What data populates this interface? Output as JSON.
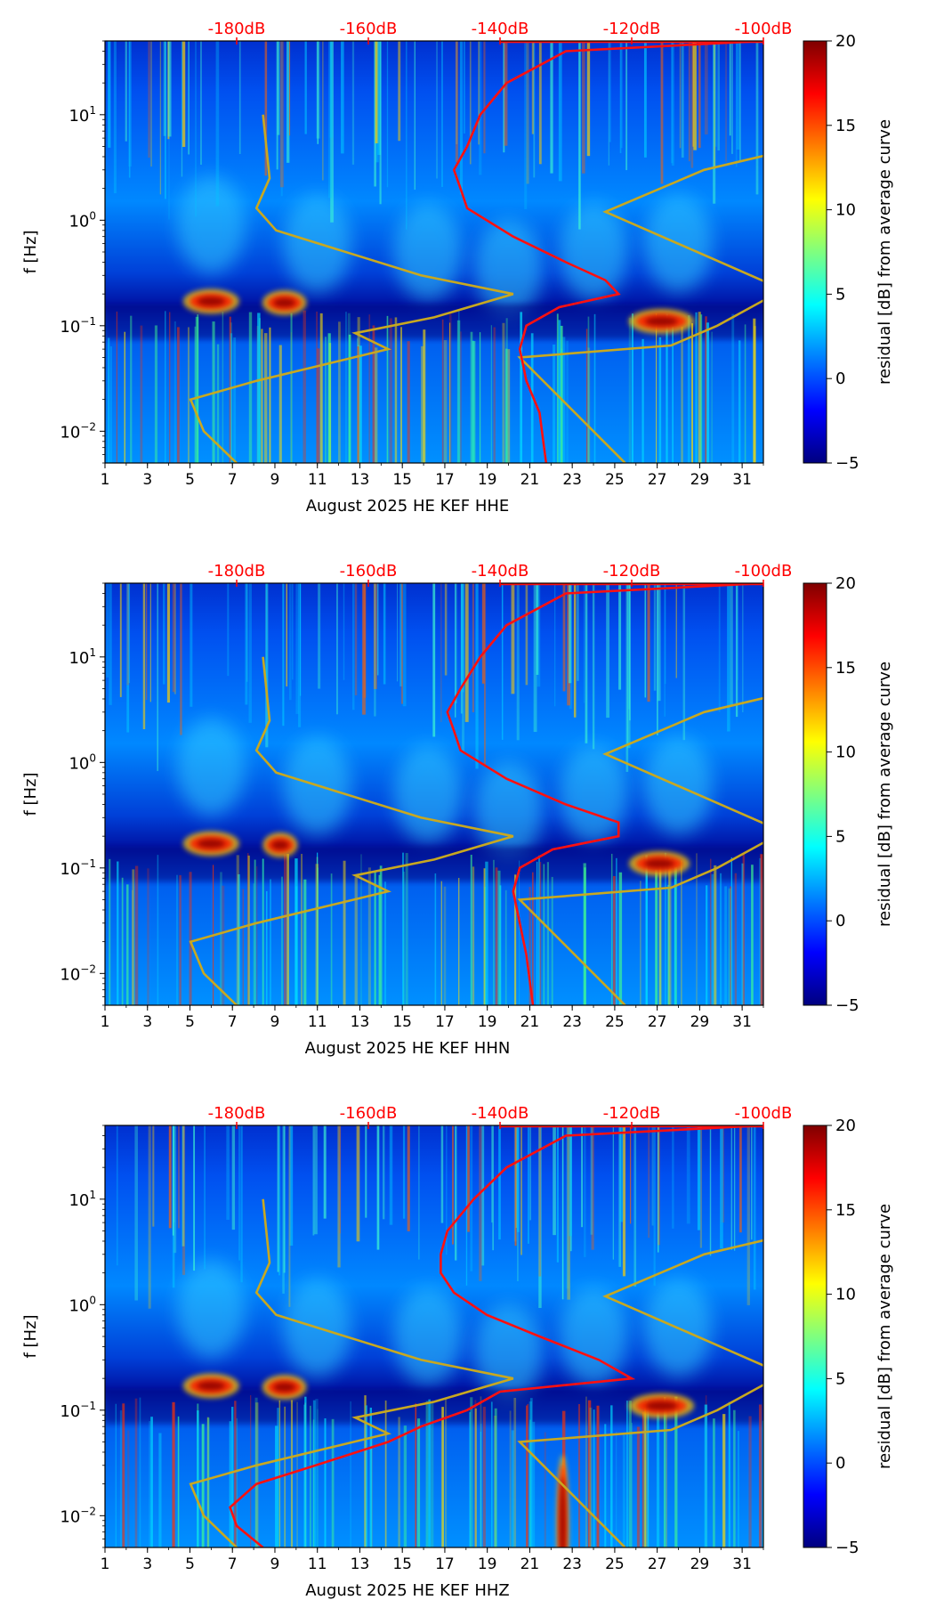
{
  "colormap": [
    "#00007f",
    "#0000ff",
    "#007fff",
    "#00ffff",
    "#7fff7f",
    "#ffff00",
    "#ff7f00",
    "#ff0000",
    "#7f0000"
  ],
  "chart_data": [
    {
      "type": "heatmap",
      "xlabel": "August 2025 HE KEF  HHE",
      "ylabel": "f [Hz]",
      "x_ticks": [
        "1",
        "3",
        "5",
        "7",
        "9",
        "11",
        "13",
        "15",
        "17",
        "19",
        "21",
        "23",
        "25",
        "27",
        "29",
        "31"
      ],
      "x_range_days": [
        1,
        32
      ],
      "y_ticks": [
        {
          "base": "10",
          "exp": "1",
          "value": 10
        },
        {
          "base": "10",
          "exp": "0",
          "value": 1
        },
        {
          "base": "10",
          "exp": "−1",
          "value": 0.1
        },
        {
          "base": "10",
          "exp": "−2",
          "value": 0.01
        }
      ],
      "y_range_hz": [
        0.005,
        50
      ],
      "top_axis_ticks": [
        "-180dB",
        "-160dB",
        "-140dB",
        "-120dB",
        "-100dB"
      ],
      "top_axis_range_db": [
        -200,
        -100
      ],
      "colorbar": {
        "label": "residual [dB] from average curve",
        "min": -5,
        "max": 20,
        "ticks": [
          "20",
          "15",
          "10",
          "5",
          "0",
          "−5"
        ],
        "tick_values": [
          20,
          15,
          10,
          5,
          0,
          -5
        ]
      },
      "hot_patches": [
        {
          "day_range": [
            4.8,
            7.2
          ],
          "freq_hz": 0.17,
          "level_db": 19
        },
        {
          "day_range": [
            8.5,
            10.4
          ],
          "freq_hz": 0.165,
          "level_db": 16
        },
        {
          "day_range": [
            25.8,
            28.6
          ],
          "freq_hz": 0.11,
          "level_db": 19
        }
      ],
      "nlnm_curve_db_vs_hz": [
        [
          0.005,
          -180
        ],
        [
          0.01,
          -185
        ],
        [
          0.02,
          -187
        ],
        [
          0.03,
          -177
        ],
        [
          0.06,
          -157
        ],
        [
          0.085,
          -162
        ],
        [
          0.12,
          -150
        ],
        [
          0.2,
          -138
        ],
        [
          0.3,
          -152
        ],
        [
          0.8,
          -174
        ],
        [
          1.3,
          -177
        ],
        [
          2.5,
          -175
        ],
        [
          10,
          -176
        ]
      ],
      "nhnm_curve_db_vs_hz": [
        [
          0.005,
          -121
        ],
        [
          0.05,
          -137
        ],
        [
          0.065,
          -114
        ],
        [
          0.1,
          -107
        ],
        [
          0.22,
          -97
        ],
        [
          1.2,
          -124
        ],
        [
          3,
          -109
        ],
        [
          4.5,
          -97
        ],
        [
          10,
          -94
        ]
      ],
      "psd_curve_db_vs_hz": [
        [
          0.005,
          -133
        ],
        [
          0.015,
          -134
        ],
        [
          0.03,
          -136
        ],
        [
          0.06,
          -137
        ],
        [
          0.1,
          -136
        ],
        [
          0.15,
          -131
        ],
        [
          0.2,
          -122
        ],
        [
          0.27,
          -124
        ],
        [
          0.4,
          -130
        ],
        [
          0.7,
          -138
        ],
        [
          1.3,
          -145
        ],
        [
          2,
          -146
        ],
        [
          3,
          -147
        ],
        [
          5,
          -145
        ],
        [
          10,
          -143
        ],
        [
          20,
          -139
        ],
        [
          40,
          -130
        ],
        [
          50,
          -100
        ]
      ]
    },
    {
      "type": "heatmap",
      "xlabel": "August 2025 HE KEF  HHN",
      "ylabel": "f [Hz]",
      "x_ticks": [
        "1",
        "3",
        "5",
        "7",
        "9",
        "11",
        "13",
        "15",
        "17",
        "19",
        "21",
        "23",
        "25",
        "27",
        "29",
        "31"
      ],
      "x_range_days": [
        1,
        32
      ],
      "y_ticks": [
        {
          "base": "10",
          "exp": "1",
          "value": 10
        },
        {
          "base": "10",
          "exp": "0",
          "value": 1
        },
        {
          "base": "10",
          "exp": "−1",
          "value": 0.1
        },
        {
          "base": "10",
          "exp": "−2",
          "value": 0.01
        }
      ],
      "y_range_hz": [
        0.005,
        50
      ],
      "top_axis_ticks": [
        "-180dB",
        "-160dB",
        "-140dB",
        "-120dB",
        "-100dB"
      ],
      "top_axis_range_db": [
        -200,
        -100
      ],
      "colorbar": {
        "label": "residual [dB] from average curve",
        "min": -5,
        "max": 20,
        "ticks": [
          "20",
          "15",
          "10",
          "5",
          "0",
          "−5"
        ],
        "tick_values": [
          20,
          15,
          10,
          5,
          0,
          -5
        ]
      },
      "hot_patches": [
        {
          "day_range": [
            4.8,
            7.2
          ],
          "freq_hz": 0.17,
          "level_db": 16
        },
        {
          "day_range": [
            8.5,
            10.0
          ],
          "freq_hz": 0.165,
          "level_db": 14
        },
        {
          "day_range": [
            25.8,
            28.4
          ],
          "freq_hz": 0.11,
          "level_db": 19
        }
      ],
      "nlnm_curve_db_vs_hz": [
        [
          0.005,
          -180
        ],
        [
          0.01,
          -185
        ],
        [
          0.02,
          -187
        ],
        [
          0.03,
          -177
        ],
        [
          0.06,
          -157
        ],
        [
          0.085,
          -162
        ],
        [
          0.12,
          -150
        ],
        [
          0.2,
          -138
        ],
        [
          0.3,
          -152
        ],
        [
          0.8,
          -174
        ],
        [
          1.3,
          -177
        ],
        [
          2.5,
          -175
        ],
        [
          10,
          -176
        ]
      ],
      "nhnm_curve_db_vs_hz": [
        [
          0.005,
          -121
        ],
        [
          0.05,
          -137
        ],
        [
          0.065,
          -114
        ],
        [
          0.1,
          -107
        ],
        [
          0.22,
          -97
        ],
        [
          1.2,
          -124
        ],
        [
          3,
          -109
        ],
        [
          4.5,
          -97
        ],
        [
          10,
          -94
        ]
      ],
      "psd_curve_db_vs_hz": [
        [
          0.005,
          -135
        ],
        [
          0.015,
          -136
        ],
        [
          0.03,
          -137
        ],
        [
          0.06,
          -138
        ],
        [
          0.1,
          -137
        ],
        [
          0.15,
          -132
        ],
        [
          0.2,
          -122
        ],
        [
          0.27,
          -122
        ],
        [
          0.4,
          -130
        ],
        [
          0.7,
          -139
        ],
        [
          1.3,
          -146
        ],
        [
          2,
          -147
        ],
        [
          3,
          -148
        ],
        [
          5,
          -146
        ],
        [
          10,
          -143
        ],
        [
          20,
          -139
        ],
        [
          40,
          -130
        ],
        [
          50,
          -100
        ]
      ]
    },
    {
      "type": "heatmap",
      "xlabel": "August 2025 HE KEF  HHZ",
      "ylabel": "f [Hz]",
      "x_ticks": [
        "1",
        "3",
        "5",
        "7",
        "9",
        "11",
        "13",
        "15",
        "17",
        "19",
        "21",
        "23",
        "25",
        "27",
        "29",
        "31"
      ],
      "x_range_days": [
        1,
        32
      ],
      "y_ticks": [
        {
          "base": "10",
          "exp": "1",
          "value": 10
        },
        {
          "base": "10",
          "exp": "0",
          "value": 1
        },
        {
          "base": "10",
          "exp": "−1",
          "value": 0.1
        },
        {
          "base": "10",
          "exp": "−2",
          "value": 0.01
        }
      ],
      "y_range_hz": [
        0.005,
        50
      ],
      "top_axis_ticks": [
        "-180dB",
        "-160dB",
        "-140dB",
        "-120dB",
        "-100dB"
      ],
      "top_axis_range_db": [
        -200,
        -100
      ],
      "colorbar": {
        "label": "residual [dB] from average curve",
        "min": -5,
        "max": 20,
        "ticks": [
          "20",
          "15",
          "10",
          "5",
          "0",
          "−5"
        ],
        "tick_values": [
          20,
          15,
          10,
          5,
          0,
          -5
        ]
      },
      "hot_patches": [
        {
          "day_range": [
            4.8,
            7.2
          ],
          "freq_hz": 0.17,
          "level_db": 19
        },
        {
          "day_range": [
            8.5,
            10.4
          ],
          "freq_hz": 0.165,
          "level_db": 16
        },
        {
          "day_range": [
            25.8,
            28.6
          ],
          "freq_hz": 0.11,
          "level_db": 19
        },
        {
          "day_range": [
            22.3,
            22.8
          ],
          "freq_hz": 0.008,
          "level_db": 19
        }
      ],
      "nlnm_curve_db_vs_hz": [
        [
          0.005,
          -180
        ],
        [
          0.01,
          -185
        ],
        [
          0.02,
          -187
        ],
        [
          0.03,
          -177
        ],
        [
          0.06,
          -157
        ],
        [
          0.085,
          -162
        ],
        [
          0.12,
          -150
        ],
        [
          0.2,
          -138
        ],
        [
          0.3,
          -152
        ],
        [
          0.8,
          -174
        ],
        [
          1.3,
          -177
        ],
        [
          2.5,
          -175
        ],
        [
          10,
          -176
        ]
      ],
      "nhnm_curve_db_vs_hz": [
        [
          0.005,
          -121
        ],
        [
          0.05,
          -137
        ],
        [
          0.065,
          -114
        ],
        [
          0.1,
          -107
        ],
        [
          0.22,
          -97
        ],
        [
          1.2,
          -124
        ],
        [
          3,
          -109
        ],
        [
          4.5,
          -97
        ],
        [
          10,
          -94
        ]
      ],
      "psd_curve_db_vs_hz": [
        [
          0.005,
          -176
        ],
        [
          0.008,
          -180
        ],
        [
          0.012,
          -181
        ],
        [
          0.02,
          -177
        ],
        [
          0.03,
          -168
        ],
        [
          0.05,
          -157
        ],
        [
          0.07,
          -152
        ],
        [
          0.1,
          -145
        ],
        [
          0.15,
          -140
        ],
        [
          0.2,
          -120
        ],
        [
          0.3,
          -125
        ],
        [
          0.5,
          -134
        ],
        [
          0.8,
          -142
        ],
        [
          1.3,
          -147
        ],
        [
          2,
          -149
        ],
        [
          3,
          -149
        ],
        [
          5,
          -148
        ],
        [
          10,
          -144
        ],
        [
          20,
          -139
        ],
        [
          40,
          -130
        ],
        [
          50,
          -100
        ]
      ]
    }
  ]
}
